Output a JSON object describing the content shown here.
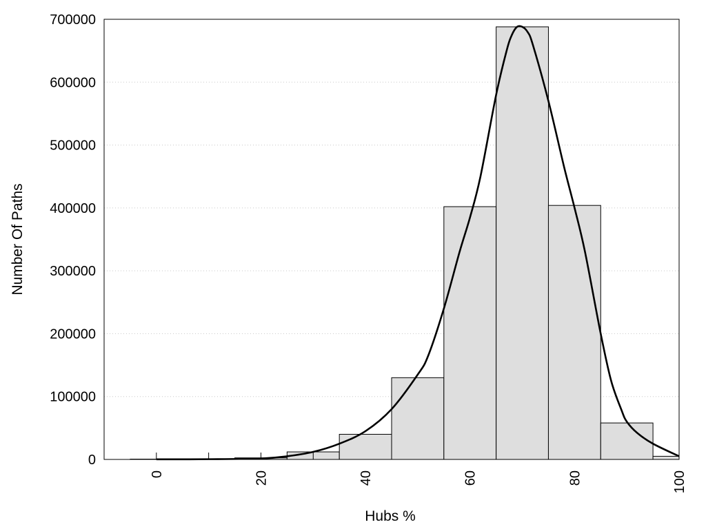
{
  "chart_data": {
    "type": "bar",
    "xlabel": "Hubs %",
    "ylabel": "Number Of Paths",
    "xlim": [
      -10,
      100
    ],
    "ylim": [
      0,
      700000
    ],
    "xticks": [
      0,
      20,
      40,
      60,
      80,
      100
    ],
    "xtick_labels": [
      "0",
      "20",
      "40",
      "60",
      "80",
      "100"
    ],
    "yticks": [
      0,
      100000,
      200000,
      300000,
      400000,
      500000,
      600000,
      700000
    ],
    "ytick_labels": [
      "0",
      "100000",
      "200000",
      "300000",
      "400000",
      "500000",
      "600000",
      "700000"
    ],
    "grid": "horizontal-dotted",
    "bins": [
      {
        "start": -5,
        "end": 5,
        "value": 500
      },
      {
        "start": 5,
        "end": 15,
        "value": 800
      },
      {
        "start": 15,
        "end": 25,
        "value": 2500
      },
      {
        "start": 25,
        "end": 35,
        "value": 12000
      },
      {
        "start": 35,
        "end": 45,
        "value": 40000
      },
      {
        "start": 45,
        "end": 55,
        "value": 130000
      },
      {
        "start": 55,
        "end": 65,
        "value": 402000
      },
      {
        "start": 65,
        "end": 75,
        "value": 688000
      },
      {
        "start": 75,
        "end": 85,
        "value": 404000
      },
      {
        "start": 85,
        "end": 95,
        "value": 58000
      },
      {
        "start": 95,
        "end": 100,
        "value": 5000
      }
    ],
    "curve": {
      "x": [
        0,
        10,
        20,
        25,
        30,
        35,
        40,
        45,
        50,
        52,
        55,
        58,
        60,
        62,
        65,
        67,
        68,
        69,
        70,
        71,
        72,
        75,
        78,
        80,
        82,
        85,
        87,
        89,
        90,
        92,
        95,
        100
      ],
      "y": [
        200,
        400,
        1500,
        5000,
        12000,
        25000,
        45000,
        80000,
        135000,
        165000,
        240000,
        330000,
        385000,
        450000,
        580000,
        650000,
        675000,
        688000,
        688000,
        680000,
        660000,
        570000,
        465000,
        400000,
        330000,
        200000,
        125000,
        78000,
        60000,
        42000,
        25000,
        5000
      ]
    },
    "colors": {
      "bar_fill": "#dedede",
      "bar_stroke": "#000000",
      "curve": "#000000"
    }
  }
}
